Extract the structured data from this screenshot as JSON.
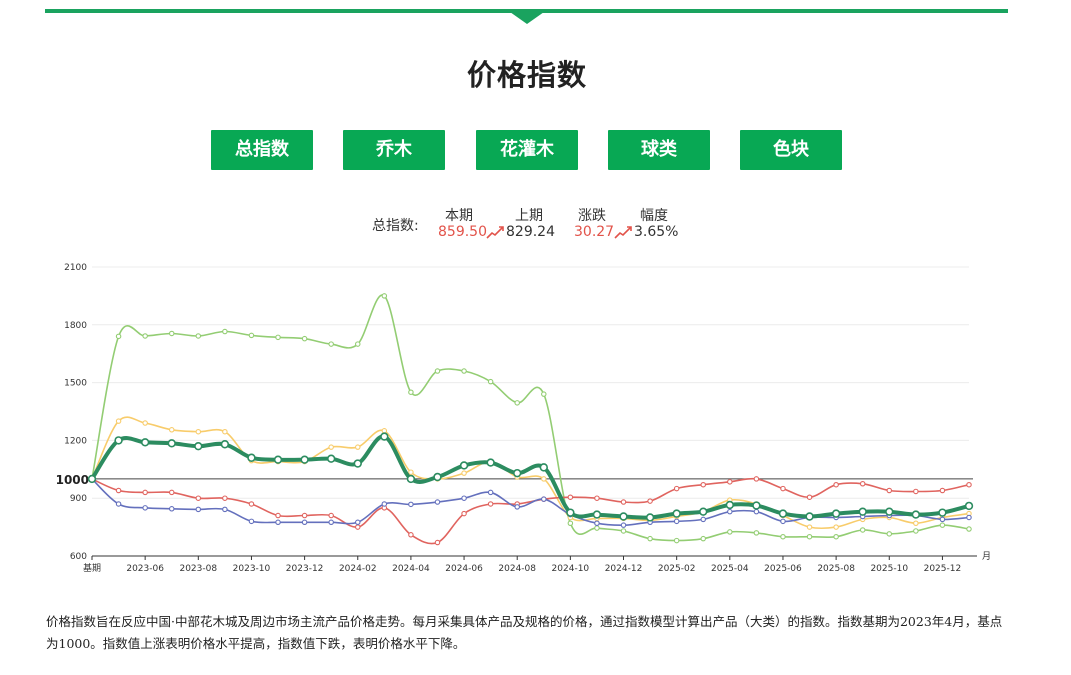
{
  "page": {
    "title": "价格指数",
    "tabs": [
      "总指数",
      "乔木",
      "花灌木",
      "球类",
      "色块"
    ]
  },
  "summary": {
    "label": "总指数:",
    "headers": {
      "current": "本期",
      "previous": "上期",
      "change": "涨跌",
      "range": "幅度"
    },
    "current": "859.50",
    "previous": "829.24",
    "change": "30.27",
    "range": "3.65%"
  },
  "note": "价格指数旨在反应中国·中部花木城及周边市场主流产品价格走势。每月采集具体产品及规格的价格，通过指数模型计算出产品（大类）的指数。指数基期为2023年4月，基点为1000。指数值上涨表明价格水平提高，指数值下跌，表明价格水平下降。",
  "chart_data": {
    "type": "line",
    "x_unit": "月",
    "baseline_label": "1000",
    "baseline": 1000,
    "ylim": [
      600,
      2100
    ],
    "y_ticks": [
      600,
      900,
      1200,
      1500,
      1800,
      2100
    ],
    "x_ticks": [
      "基期",
      "2023-06",
      "2023-08",
      "2023-10",
      "2023-12",
      "2024-02",
      "2024-04",
      "2024-06",
      "2024-08",
      "2024-10",
      "2024-12",
      "2025-02",
      "2025-04",
      "2025-06",
      "2025-08",
      "2025-10",
      "2025-12"
    ],
    "x": [
      "2023-04",
      "2023-05",
      "2023-06",
      "2023-07",
      "2023-08",
      "2023-09",
      "2023-10",
      "2023-11",
      "2023-12",
      "2024-01",
      "2024-02",
      "2024-03",
      "2024-04",
      "2024-05",
      "2024-06",
      "2024-07",
      "2024-08",
      "2024-09",
      "2024-10",
      "2024-11",
      "2024-12",
      "2025-01",
      "2025-02",
      "2025-03",
      "2025-04",
      "2025-05",
      "2025-06",
      "2025-07",
      "2025-08",
      "2025-09",
      "2025-10",
      "2025-11",
      "2025-12",
      "2026-01"
    ],
    "series": [
      {
        "color": "#93cd73",
        "width": 1.6,
        "values": [
          1000,
          1740,
          1742,
          1755,
          1742,
          1765,
          1745,
          1735,
          1728,
          1700,
          1700,
          1950,
          1450,
          1560,
          1560,
          1505,
          1395,
          1440,
          770,
          745,
          730,
          690,
          680,
          690,
          725,
          720,
          700,
          700,
          700,
          735,
          715,
          730,
          760,
          740
        ]
      },
      {
        "color": "#f8cc6b",
        "width": 1.6,
        "values": [
          1000,
          1300,
          1290,
          1255,
          1245,
          1245,
          1095,
          1090,
          1090,
          1165,
          1165,
          1250,
          1035,
          1000,
          1030,
          1090,
          1010,
          1000,
          800,
          795,
          795,
          785,
          805,
          830,
          890,
          870,
          810,
          750,
          750,
          790,
          800,
          770,
          800,
          820
        ]
      },
      {
        "color": "#e0645f",
        "width": 1.6,
        "values": [
          1000,
          940,
          930,
          930,
          900,
          900,
          870,
          810,
          810,
          810,
          750,
          850,
          710,
          670,
          820,
          870,
          870,
          895,
          905,
          900,
          880,
          885,
          950,
          970,
          985,
          1000,
          950,
          905,
          970,
          975,
          940,
          935,
          940,
          970
        ]
      },
      {
        "color": "#6470bd",
        "width": 1.6,
        "values": [
          1000,
          870,
          850,
          845,
          842,
          842,
          780,
          775,
          775,
          775,
          775,
          870,
          868,
          880,
          900,
          930,
          855,
          895,
          815,
          770,
          760,
          775,
          780,
          790,
          830,
          830,
          780,
          800,
          800,
          805,
          810,
          810,
          790,
          800
        ]
      },
      {
        "color": "#2c8c60",
        "width": 4,
        "values": [
          1000,
          1200,
          1190,
          1185,
          1170,
          1180,
          1110,
          1100,
          1100,
          1105,
          1080,
          1220,
          1000,
          1010,
          1070,
          1085,
          1030,
          1060,
          825,
          815,
          805,
          800,
          820,
          830,
          865,
          862,
          820,
          805,
          820,
          830,
          830,
          815,
          825,
          860
        ]
      }
    ]
  }
}
